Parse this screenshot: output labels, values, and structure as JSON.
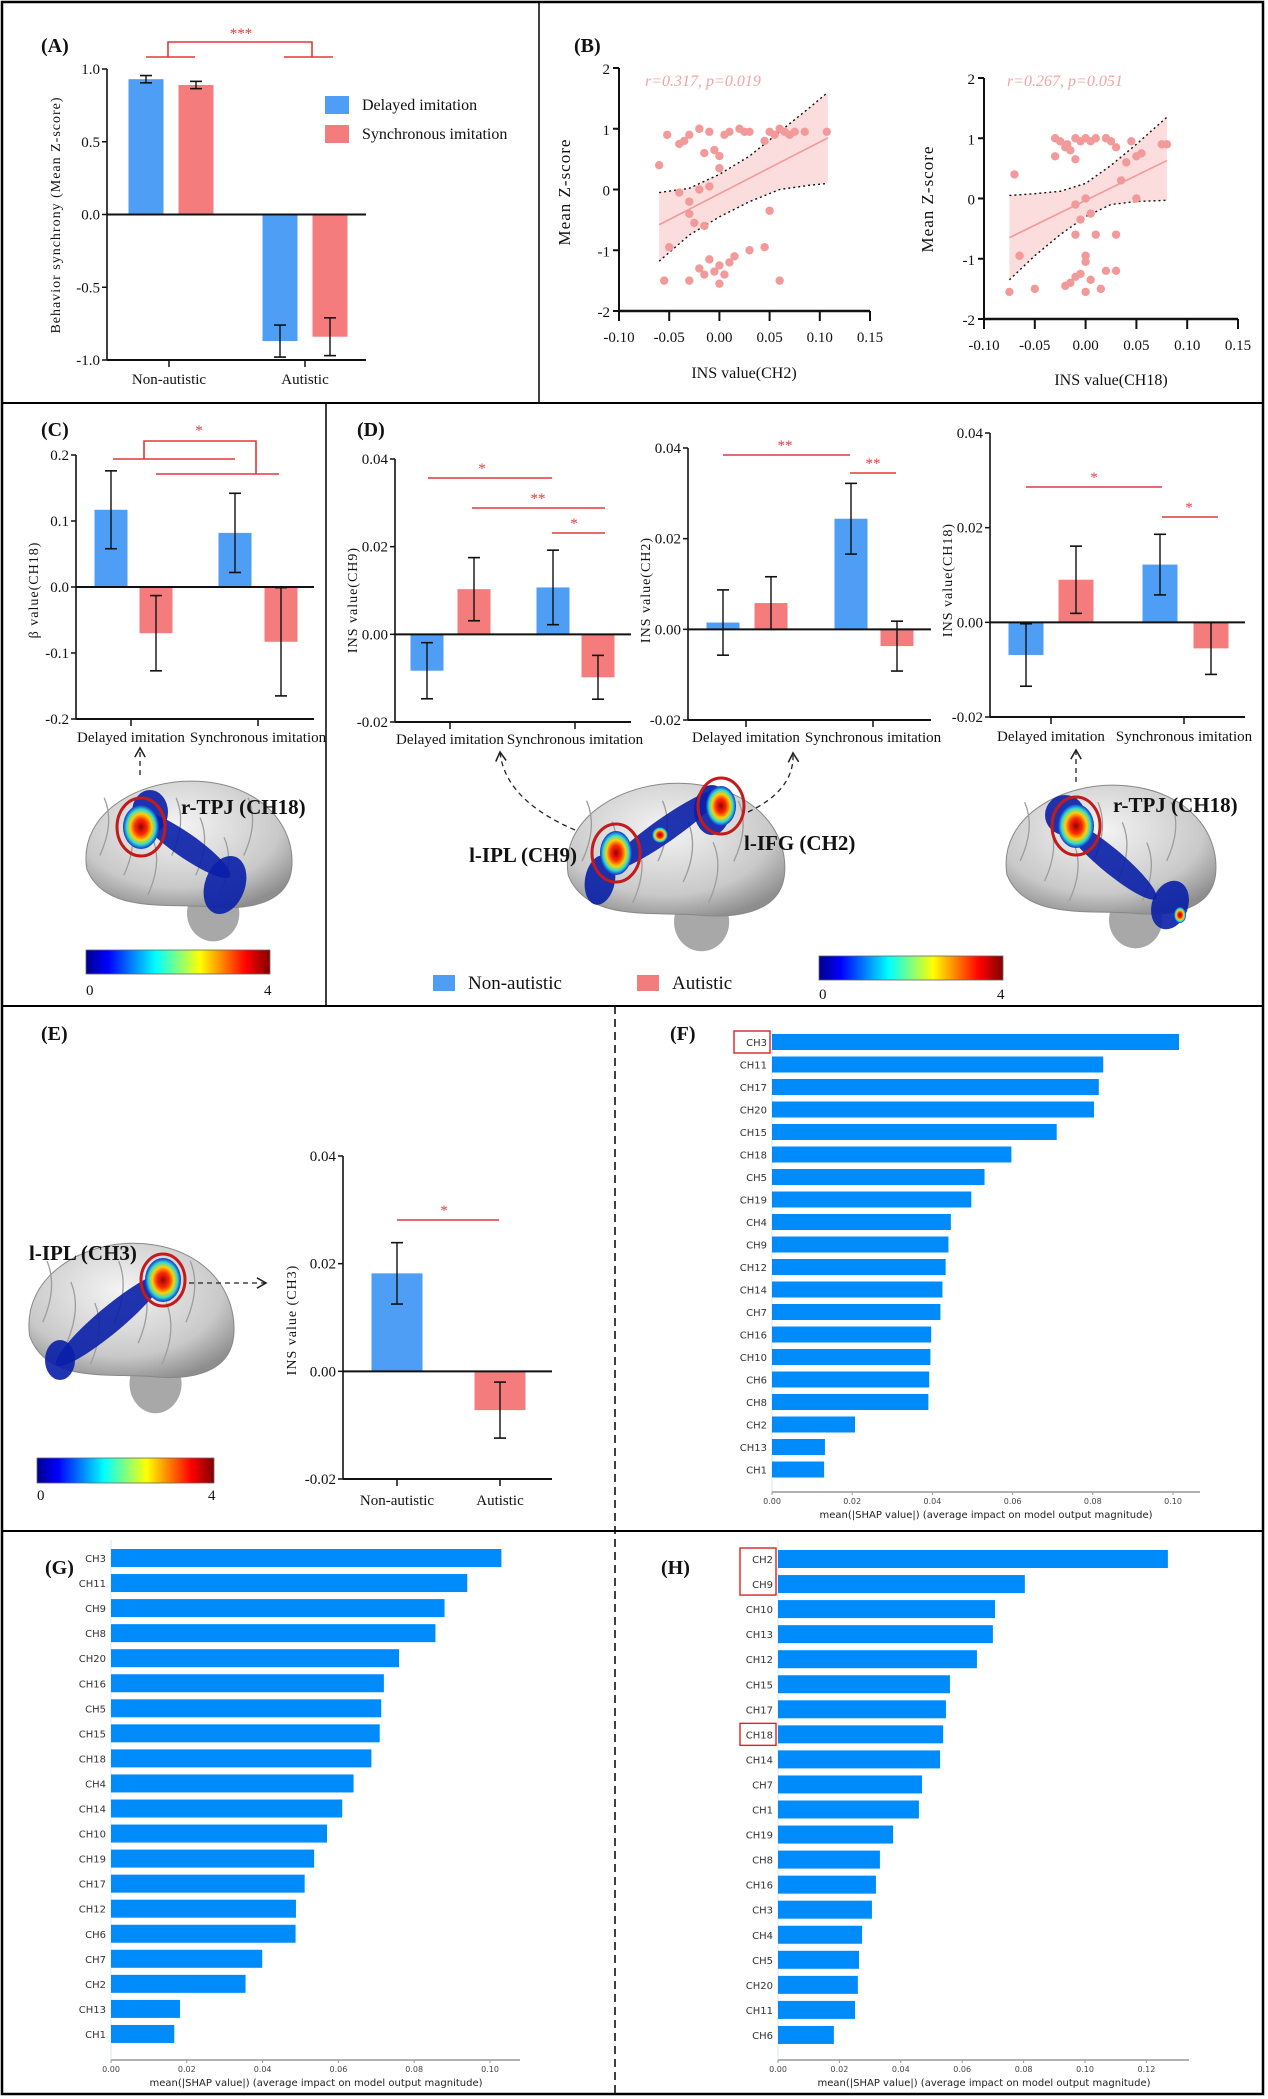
{
  "figure": {
    "panel_labels": [
      "(A)",
      "(B)",
      "(C)",
      "(D)",
      "(E)",
      "(F)",
      "(G)",
      "(H)"
    ],
    "brain_labels": {
      "C": "r-TPJ (CH18)",
      "D_left": "l-IPL (CH9)",
      "D_right": "l-IFG (CH2)",
      "D_third": "r-TPJ (CH18)",
      "E": "l-IPL (CH3)"
    },
    "colorbars": [
      {
        "min": "0",
        "max": "4"
      },
      {
        "min": "0",
        "max": "4"
      },
      {
        "min": "0",
        "max": "4"
      }
    ],
    "group_legend": [
      {
        "label": "Non-autistic",
        "color": "#4f9ef5"
      },
      {
        "label": "Autistic",
        "color": "#f47c7c"
      }
    ]
  },
  "chart_data": [
    {
      "id": "A",
      "type": "bar",
      "ylabel": "Behavior synchrony (Mean Z-score)",
      "categories": [
        "Non-autistic",
        "Autistic"
      ],
      "series": [
        {
          "name": "Delayed imitation",
          "values": [
            0.93,
            -0.87
          ],
          "errors": [
            0.025,
            0.11
          ]
        },
        {
          "name": "Synchronous imitation",
          "values": [
            0.89,
            -0.84
          ],
          "errors": [
            0.025,
            0.13
          ]
        }
      ],
      "colors": [
        "#4f9ef5",
        "#f47c7c"
      ],
      "ylim": [
        -1,
        1
      ],
      "yticks": [
        -1,
        -0.5,
        0,
        0.5,
        1
      ],
      "ytick_labels": [
        "-1.0",
        "-0.5",
        "0.0",
        "0.5",
        "1.0"
      ],
      "significance": [
        "***"
      ],
      "legend": "top-right"
    },
    {
      "id": "B1",
      "type": "scatter",
      "xlabel": "INS value(CH2)",
      "ylabel": "Mean Z-score",
      "annotation": "r=0.317, p=0.019",
      "xlim": [
        -0.1,
        0.15
      ],
      "ylim": [
        -2,
        2
      ],
      "xticks": [
        -0.1,
        -0.05,
        0,
        0.05,
        0.1,
        0.15
      ],
      "xtick_labels": [
        "-0.10",
        "-0.05",
        "0.00",
        "0.05",
        "0.10",
        "0.15"
      ],
      "yticks": [
        -2,
        -1,
        0,
        1,
        2
      ],
      "ytick_labels": [
        "-2",
        "-1",
        "0",
        "1",
        "2"
      ],
      "color": "#f29a9a",
      "points": [
        [
          -0.06,
          0.4
        ],
        [
          -0.052,
          0.9
        ],
        [
          -0.04,
          0.75
        ],
        [
          -0.035,
          0.8
        ],
        [
          -0.03,
          0.9
        ],
        [
          -0.02,
          1.0
        ],
        [
          -0.015,
          0.6
        ],
        [
          -0.01,
          0.95
        ],
        [
          0.0,
          0.55
        ],
        [
          -0.005,
          0.65
        ],
        [
          0.005,
          0.9
        ],
        [
          0.01,
          0.95
        ],
        [
          0.02,
          1.0
        ],
        [
          0.025,
          0.95
        ],
        [
          0.03,
          0.95
        ],
        [
          0.045,
          0.8
        ],
        [
          0.05,
          0.95
        ],
        [
          0.055,
          0.9
        ],
        [
          0.06,
          1.0
        ],
        [
          0.065,
          0.95
        ],
        [
          0.07,
          0.9
        ],
        [
          0.075,
          0.95
        ],
        [
          0.085,
          0.95
        ],
        [
          0.107,
          0.95
        ],
        [
          0.0,
          0.35
        ],
        [
          -0.04,
          -0.05
        ],
        [
          -0.02,
          0.0
        ],
        [
          -0.01,
          0.05
        ],
        [
          -0.03,
          -0.2
        ],
        [
          -0.03,
          -0.4
        ],
        [
          -0.025,
          -0.55
        ],
        [
          -0.015,
          -0.6
        ],
        [
          0.05,
          -0.35
        ],
        [
          -0.05,
          -0.95
        ],
        [
          -0.01,
          -1.15
        ],
        [
          0.0,
          -1.25
        ],
        [
          0.01,
          -1.2
        ],
        [
          0.015,
          -1.1
        ],
        [
          0.03,
          -1.0
        ],
        [
          0.045,
          -0.95
        ],
        [
          -0.02,
          -1.3
        ],
        [
          -0.015,
          -1.4
        ],
        [
          -0.005,
          -1.35
        ],
        [
          0.005,
          -1.4
        ],
        [
          -0.055,
          -1.5
        ],
        [
          -0.03,
          -1.5
        ],
        [
          0.0,
          -1.55
        ],
        [
          0.06,
          -1.5
        ]
      ],
      "fit": {
        "x": [
          -0.06,
          0.108
        ],
        "y": [
          -0.58,
          0.85
        ]
      },
      "ci": {
        "x": [
          -0.06,
          -0.03,
          0.0,
          0.03,
          0.06,
          0.09,
          0.108
        ],
        "upper": [
          -0.05,
          0.02,
          0.25,
          0.55,
          0.95,
          1.35,
          1.6
        ],
        "lower": [
          -1.18,
          -0.75,
          -0.45,
          -0.2,
          0.0,
          0.07,
          0.1
        ]
      }
    },
    {
      "id": "B2",
      "type": "scatter",
      "xlabel": "INS value(CH18)",
      "ylabel": "Mean Z-score",
      "annotation": "r=0.267, p=0.051",
      "xlim": [
        -0.1,
        0.15
      ],
      "ylim": [
        -2,
        2
      ],
      "xticks": [
        -0.1,
        -0.05,
        0,
        0.05,
        0.1,
        0.15
      ],
      "xtick_labels": [
        "-0.10",
        "-0.05",
        "0.00",
        "0.05",
        "0.10",
        "0.15"
      ],
      "yticks": [
        -2,
        -1,
        0,
        1,
        2
      ],
      "ytick_labels": [
        "-2",
        "-1",
        "0",
        "1",
        "2"
      ],
      "color": "#f29a9a",
      "points": [
        [
          -0.075,
          -1.55
        ],
        [
          -0.07,
          0.4
        ],
        [
          -0.065,
          -0.95
        ],
        [
          -0.05,
          -1.5
        ],
        [
          -0.03,
          1.0
        ],
        [
          -0.025,
          0.95
        ],
        [
          -0.02,
          0.85
        ],
        [
          -0.018,
          0.9
        ],
        [
          -0.015,
          0.8
        ],
        [
          -0.03,
          0.7
        ],
        [
          -0.01,
          1.0
        ],
        [
          -0.005,
          0.95
        ],
        [
          0.0,
          1.0
        ],
        [
          0.005,
          0.95
        ],
        [
          0.01,
          1.0
        ],
        [
          0.02,
          1.0
        ],
        [
          0.025,
          0.95
        ],
        [
          0.03,
          0.85
        ],
        [
          -0.01,
          0.65
        ],
        [
          0.04,
          0.6
        ],
        [
          0.05,
          0.7
        ],
        [
          0.055,
          0.75
        ],
        [
          0.045,
          0.95
        ],
        [
          0.075,
          0.9
        ],
        [
          0.08,
          0.9
        ],
        [
          0.035,
          0.3
        ],
        [
          0.05,
          0.0
        ],
        [
          0.0,
          0.0
        ],
        [
          -0.01,
          -0.1
        ],
        [
          0.005,
          -0.25
        ],
        [
          -0.005,
          -0.35
        ],
        [
          -0.01,
          -0.6
        ],
        [
          0.01,
          -0.6
        ],
        [
          0.03,
          -0.6
        ],
        [
          0.0,
          -0.95
        ],
        [
          0.0,
          -1.05
        ],
        [
          -0.01,
          -1.3
        ],
        [
          -0.015,
          -1.4
        ],
        [
          -0.005,
          -1.25
        ],
        [
          0.005,
          -1.35
        ],
        [
          0.02,
          -1.2
        ],
        [
          0.03,
          -1.2
        ],
        [
          -0.02,
          -1.45
        ],
        [
          0.0,
          -1.55
        ],
        [
          0.015,
          -1.5
        ]
      ],
      "fit": {
        "x": [
          -0.075,
          0.08
        ],
        "y": [
          -0.65,
          0.63
        ]
      },
      "ci": {
        "x": [
          -0.075,
          -0.05,
          -0.025,
          0.0,
          0.025,
          0.05,
          0.08
        ],
        "upper": [
          0.05,
          0.08,
          0.12,
          0.25,
          0.55,
          0.9,
          1.35
        ],
        "lower": [
          -1.35,
          -0.95,
          -0.6,
          -0.3,
          -0.1,
          -0.05,
          -0.03
        ]
      }
    },
    {
      "id": "C",
      "type": "bar",
      "ylabel": "β value(CH18)",
      "categories": [
        "Delayed imitation",
        "Synchronous imitation"
      ],
      "series": [
        {
          "name": "Non-autistic",
          "values": [
            0.117,
            0.082
          ],
          "errors": [
            0.059,
            0.06
          ]
        },
        {
          "name": "Autistic",
          "values": [
            -0.07,
            -0.083
          ],
          "errors": [
            0.057,
            0.082
          ]
        }
      ],
      "colors": [
        "#4f9ef5",
        "#f47c7c"
      ],
      "ylim": [
        -0.2,
        0.2
      ],
      "yticks": [
        -0.2,
        -0.1,
        0,
        0.1,
        0.2
      ],
      "ytick_labels": [
        "-0.2",
        "-0.1",
        "0.0",
        "0.1",
        "0.2"
      ],
      "significance": [
        "*"
      ]
    },
    {
      "id": "D1",
      "type": "bar",
      "ylabel": "INS value(CH9)",
      "categories": [
        "Delayed imitation",
        "Synchronous imitation"
      ],
      "series": [
        {
          "name": "Non-autistic",
          "values": [
            -0.0083,
            0.0107
          ],
          "errors": [
            0.0064,
            0.0085
          ]
        },
        {
          "name": "Autistic",
          "values": [
            0.0103,
            -0.0098
          ],
          "errors": [
            0.0072,
            0.005
          ]
        }
      ],
      "colors": [
        "#4f9ef5",
        "#f47c7c"
      ],
      "ylim": [
        -0.02,
        0.04
      ],
      "yticks": [
        -0.02,
        0,
        0.02,
        0.04
      ],
      "ytick_labels": [
        "-0.02",
        "0.00",
        "0.02",
        "0.04"
      ],
      "significance": [
        "*",
        "**",
        "*"
      ]
    },
    {
      "id": "D2",
      "type": "bar",
      "ylabel": "INS value(CH2)",
      "categories": [
        "Delayed imitation",
        "Synchronous imitation"
      ],
      "series": [
        {
          "name": "Non-autistic",
          "values": [
            0.0015,
            0.0244
          ],
          "errors": [
            0.0072,
            0.0078
          ]
        },
        {
          "name": "Autistic",
          "values": [
            0.0058,
            -0.0037
          ],
          "errors": [
            0.0058,
            0.0055
          ]
        }
      ],
      "colors": [
        "#4f9ef5",
        "#f47c7c"
      ],
      "ylim": [
        -0.02,
        0.04
      ],
      "yticks": [
        -0.02,
        0,
        0.02,
        0.04
      ],
      "ytick_labels": [
        "-0.02",
        "0.00",
        "0.02",
        "0.04"
      ],
      "significance": [
        "**",
        "**"
      ]
    },
    {
      "id": "D3",
      "type": "bar",
      "ylabel": "INS value(CH18)",
      "categories": [
        "Delayed imitation",
        "Synchronous imitation"
      ],
      "series": [
        {
          "name": "Non-autistic",
          "values": [
            -0.0069,
            0.0122
          ],
          "errors": [
            0.0066,
            0.0064
          ]
        },
        {
          "name": "Autistic",
          "values": [
            0.009,
            -0.0055
          ],
          "errors": [
            0.0071,
            0.0055
          ]
        }
      ],
      "colors": [
        "#4f9ef5",
        "#f47c7c"
      ],
      "ylim": [
        -0.02,
        0.04
      ],
      "yticks": [
        -0.02,
        0,
        0.02,
        0.04
      ],
      "ytick_labels": [
        "-0.02",
        "0.00",
        "0.02",
        "0.04"
      ],
      "significance": [
        "*",
        "*"
      ]
    },
    {
      "id": "E",
      "type": "bar",
      "ylabel": "INS value (CH3)",
      "categories": [
        "Non-autistic",
        "Autistic"
      ],
      "values": [
        0.0182,
        -0.0072
      ],
      "errors": [
        0.0057,
        0.0052
      ],
      "colors": [
        "#4f9ef5",
        "#f47c7c"
      ],
      "ylim": [
        -0.02,
        0.04
      ],
      "yticks": [
        -0.02,
        0,
        0.02,
        0.04
      ],
      "ytick_labels": [
        "-0.02",
        "0.00",
        "0.02",
        "0.04"
      ],
      "significance": [
        "*"
      ]
    },
    {
      "id": "F",
      "type": "bar",
      "orientation": "horizontal",
      "xlabel": "mean(|SHAP value|) (average impact on model output magnitude)",
      "categories": [
        "CH3",
        "CH11",
        "CH17",
        "CH20",
        "CH15",
        "CH18",
        "CH5",
        "CH19",
        "CH4",
        "CH9",
        "CH12",
        "CH14",
        "CH7",
        "CH16",
        "CH10",
        "CH6",
        "CH8",
        "CH2",
        "CH13",
        "CH1"
      ],
      "values": [
        0.1015,
        0.0826,
        0.0815,
        0.0803,
        0.071,
        0.0597,
        0.053,
        0.0497,
        0.0446,
        0.044,
        0.0433,
        0.0425,
        0.042,
        0.0397,
        0.0395,
        0.0392,
        0.039,
        0.0207,
        0.0132,
        0.013
      ],
      "xlim": [
        0,
        0.107
      ],
      "xticks": [
        0,
        0.02,
        0.04,
        0.06,
        0.08,
        0.1
      ],
      "xtick_labels": [
        "0.00",
        "0.02",
        "0.04",
        "0.06",
        "0.08",
        "0.10"
      ],
      "color": "#008bfb",
      "highlighted": [
        [
          "CH3"
        ]
      ]
    },
    {
      "id": "G",
      "type": "bar",
      "orientation": "horizontal",
      "xlabel": "mean(|SHAP value|) (average impact on model output magnitude)",
      "categories": [
        "CH3",
        "CH11",
        "CH9",
        "CH8",
        "CH20",
        "CH16",
        "CH5",
        "CH15",
        "CH18",
        "CH4",
        "CH14",
        "CH10",
        "CH19",
        "CH17",
        "CH12",
        "CH6",
        "CH7",
        "CH2",
        "CH13",
        "CH1"
      ],
      "values": [
        0.103,
        0.094,
        0.088,
        0.0856,
        0.076,
        0.072,
        0.0713,
        0.0709,
        0.0687,
        0.064,
        0.061,
        0.057,
        0.0536,
        0.0511,
        0.0488,
        0.0487,
        0.0399,
        0.0355,
        0.0182,
        0.0167
      ],
      "xlim": [
        0,
        0.108
      ],
      "xticks": [
        0,
        0.02,
        0.04,
        0.06,
        0.08,
        0.1
      ],
      "xtick_labels": [
        "0.00",
        "0.02",
        "0.04",
        "0.06",
        "0.08",
        "0.10"
      ],
      "color": "#008bfb",
      "highlighted": []
    },
    {
      "id": "H",
      "type": "bar",
      "orientation": "horizontal",
      "xlabel": "mean(|SHAP value|) (average impact on model output magnitude)",
      "categories": [
        "CH2",
        "CH9",
        "CH10",
        "CH13",
        "CH12",
        "CH15",
        "CH17",
        "CH18",
        "CH14",
        "CH7",
        "CH1",
        "CH19",
        "CH8",
        "CH16",
        "CH3",
        "CH4",
        "CH5",
        "CH20",
        "CH11",
        "CH6"
      ],
      "values": [
        0.127,
        0.0804,
        0.0707,
        0.07,
        0.0648,
        0.056,
        0.0547,
        0.0538,
        0.0528,
        0.0469,
        0.0459,
        0.0375,
        0.0332,
        0.0319,
        0.0306,
        0.0274,
        0.0264,
        0.026,
        0.0251,
        0.0182
      ],
      "xlim": [
        0,
        0.134
      ],
      "xticks": [
        0,
        0.02,
        0.04,
        0.06,
        0.08,
        0.1,
        0.12
      ],
      "xtick_labels": [
        "0.00",
        "0.02",
        "0.04",
        "0.06",
        "0.08",
        "0.10",
        "0.12"
      ],
      "color": "#008bfb",
      "highlighted": [
        [
          "CH2",
          "CH9"
        ],
        [
          "CH18"
        ]
      ]
    }
  ]
}
